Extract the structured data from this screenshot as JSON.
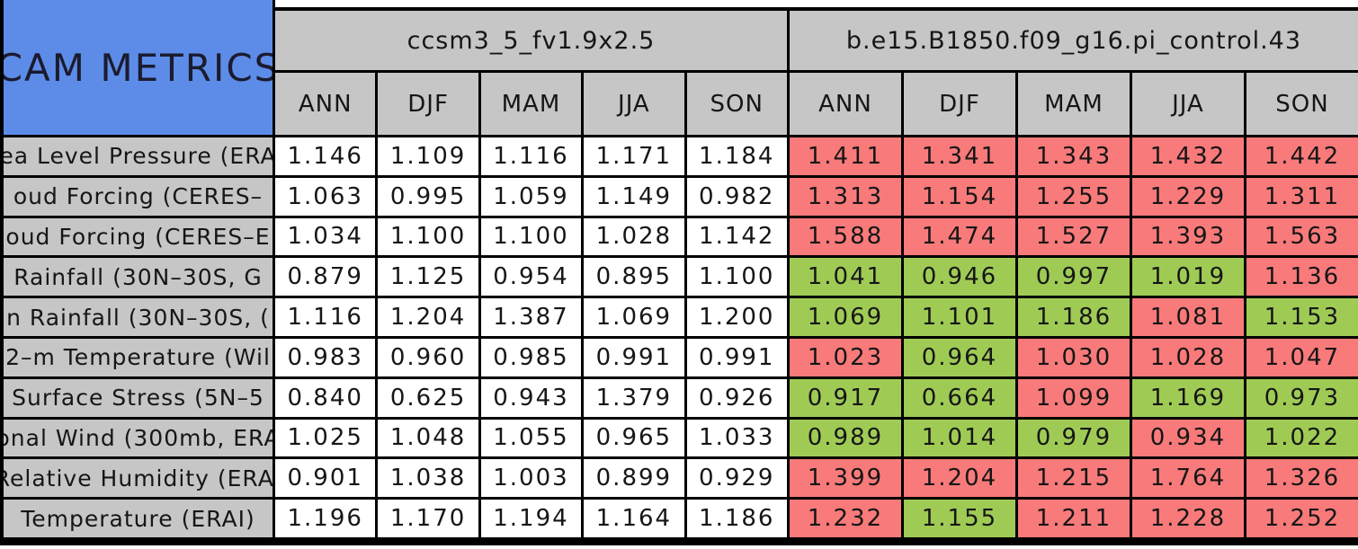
{
  "title": "CAM METRICS",
  "palette": {
    "title_box_blue": "#5d8ce8",
    "header_gray": "#c6c6c6",
    "neutral_cell_white": "#ffffff",
    "red_cell": "#f97a7a",
    "green_cell": "#9fcb55",
    "border_black": "#000000"
  },
  "chart_data": {
    "type": "table",
    "title": "CAM METRICS",
    "column_groups": [
      {
        "name": "ccsm3_5_fv1.9x2.5",
        "columns": [
          "ANN",
          "DJF",
          "MAM",
          "JJA",
          "SON"
        ]
      },
      {
        "name": "b.e15.B1850.f09_g16.pi_control.43",
        "columns": [
          "ANN",
          "DJF",
          "MAM",
          "JJA",
          "SON"
        ]
      }
    ],
    "rows": [
      {
        "label": "ea Level Pressure (ERA",
        "group1_values": [
          "1.146",
          "1.109",
          "1.116",
          "1.171",
          "1.184"
        ],
        "group2_values": [
          "1.411",
          "1.341",
          "1.343",
          "1.432",
          "1.442"
        ],
        "group2_cell_colors": [
          "red",
          "red",
          "red",
          "red",
          "red"
        ]
      },
      {
        "label": "oud Forcing (CERES–",
        "group1_values": [
          "1.063",
          "0.995",
          "1.059",
          "1.149",
          "0.982"
        ],
        "group2_values": [
          "1.313",
          "1.154",
          "1.255",
          "1.229",
          "1.311"
        ],
        "group2_cell_colors": [
          "red",
          "red",
          "red",
          "red",
          "red"
        ]
      },
      {
        "label": "oud Forcing (CERES–E",
        "group1_values": [
          "1.034",
          "1.100",
          "1.100",
          "1.028",
          "1.142"
        ],
        "group2_values": [
          "1.588",
          "1.474",
          "1.527",
          "1.393",
          "1.563"
        ],
        "group2_cell_colors": [
          "red",
          "red",
          "red",
          "red",
          "red"
        ]
      },
      {
        "label": "Rainfall (30N–30S, G",
        "group1_values": [
          "0.879",
          "1.125",
          "0.954",
          "0.895",
          "1.100"
        ],
        "group2_values": [
          "1.041",
          "0.946",
          "0.997",
          "1.019",
          "1.136"
        ],
        "group2_cell_colors": [
          "green",
          "green",
          "green",
          "green",
          "red"
        ]
      },
      {
        "label": "n Rainfall (30N–30S, (",
        "group1_values": [
          "1.116",
          "1.204",
          "1.387",
          "1.069",
          "1.200"
        ],
        "group2_values": [
          "1.069",
          "1.101",
          "1.186",
          "1.081",
          "1.153"
        ],
        "group2_cell_colors": [
          "green",
          "green",
          "green",
          "red",
          "green"
        ]
      },
      {
        "label": "2–m Temperature (Wil",
        "group1_values": [
          "0.983",
          "0.960",
          "0.985",
          "0.991",
          "0.991"
        ],
        "group2_values": [
          "1.023",
          "0.964",
          "1.030",
          "1.028",
          "1.047"
        ],
        "group2_cell_colors": [
          "red",
          "green",
          "red",
          "red",
          "red"
        ]
      },
      {
        "label": "Surface Stress (5N–5",
        "group1_values": [
          "0.840",
          "0.625",
          "0.943",
          "1.379",
          "0.926"
        ],
        "group2_values": [
          "0.917",
          "0.664",
          "1.099",
          "1.169",
          "0.973"
        ],
        "group2_cell_colors": [
          "green",
          "green",
          "red",
          "green",
          "green"
        ]
      },
      {
        "label": "onal Wind (300mb, ERA",
        "group1_values": [
          "1.025",
          "1.048",
          "1.055",
          "0.965",
          "1.033"
        ],
        "group2_values": [
          "0.989",
          "1.014",
          "0.979",
          "0.934",
          "1.022"
        ],
        "group2_cell_colors": [
          "green",
          "green",
          "green",
          "red",
          "green"
        ]
      },
      {
        "label": "Relative Humidity (ERAI",
        "group1_values": [
          "0.901",
          "1.038",
          "1.003",
          "0.899",
          "0.929"
        ],
        "group2_values": [
          "1.399",
          "1.204",
          "1.215",
          "1.764",
          "1.326"
        ],
        "group2_cell_colors": [
          "red",
          "red",
          "red",
          "red",
          "red"
        ]
      },
      {
        "label": "Temperature (ERAI)",
        "group1_values": [
          "1.196",
          "1.170",
          "1.194",
          "1.164",
          "1.186"
        ],
        "group2_values": [
          "1.232",
          "1.155",
          "1.211",
          "1.228",
          "1.252"
        ],
        "group2_cell_colors": [
          "red",
          "green",
          "red",
          "red",
          "red"
        ]
      }
    ]
  }
}
